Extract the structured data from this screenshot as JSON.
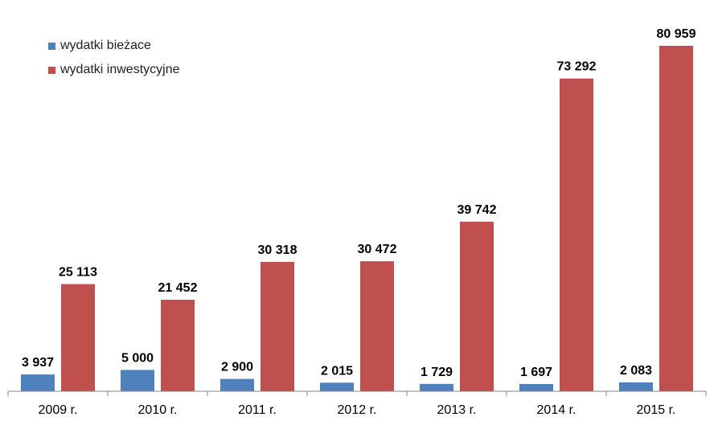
{
  "chart_data": {
    "type": "bar",
    "categories": [
      "2009 r.",
      "2010 r.",
      "2011 r.",
      "2012 r.",
      "2013 r.",
      "2014 r.",
      "2015 r."
    ],
    "series": [
      {
        "name": "wydatki bieżace",
        "color": "#4F81BD",
        "values": [
          3937,
          5000,
          2900,
          2015,
          1729,
          1697,
          2083
        ],
        "labels": [
          "3 937",
          "5 000",
          "2 900",
          "2 015",
          "1 729",
          "1 697",
          "2 083"
        ]
      },
      {
        "name": "wydatki inwestycyjne",
        "color": "#C0504D",
        "values": [
          25113,
          21452,
          30318,
          30472,
          39742,
          73292,
          80959
        ],
        "labels": [
          "25 113",
          "21 452",
          "30 318",
          "30 472",
          "39 742",
          "73 292",
          "80 959"
        ]
      }
    ],
    "title": "",
    "xlabel": "",
    "ylabel": "",
    "grid": false,
    "legend_position": "top-left"
  }
}
